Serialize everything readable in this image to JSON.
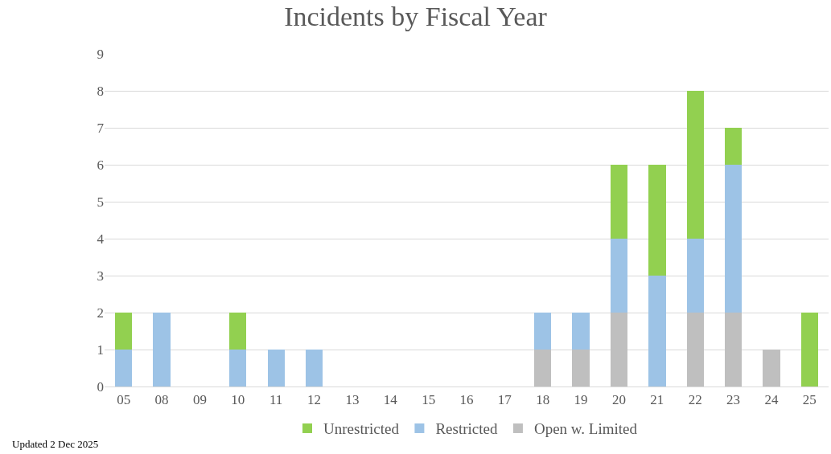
{
  "chart_data": {
    "type": "bar",
    "title": "Incidents by Fiscal Year",
    "stacked": true,
    "categories": [
      "05",
      "08",
      "09",
      "10",
      "11",
      "12",
      "13",
      "14",
      "15",
      "16",
      "17",
      "18",
      "19",
      "20",
      "21",
      "22",
      "23",
      "24",
      "25"
    ],
    "series": [
      {
        "name": "Open w. Limited",
        "color": "#bfbfbf",
        "values": [
          0,
          0,
          0,
          0,
          0,
          0,
          0,
          0,
          0,
          0,
          0,
          1,
          1,
          2,
          0,
          2,
          2,
          1,
          0
        ]
      },
      {
        "name": "Restricted",
        "color": "#9dc3e6",
        "values": [
          1,
          2,
          0,
          1,
          1,
          1,
          0,
          0,
          0,
          0,
          0,
          1,
          1,
          2,
          3,
          2,
          4,
          0,
          0
        ]
      },
      {
        "name": "Unrestricted",
        "color": "#92d050",
        "values": [
          1,
          0,
          0,
          1,
          0,
          0,
          0,
          0,
          0,
          0,
          0,
          0,
          0,
          2,
          3,
          4,
          1,
          0,
          2
        ]
      }
    ],
    "ylim": [
      0,
      9
    ],
    "yticks": [
      0,
      1,
      2,
      3,
      4,
      5,
      6,
      7,
      8,
      9
    ],
    "grid": "y",
    "legend": "bottom",
    "annotations": [
      "Updated 2 Dec 2025"
    ]
  }
}
